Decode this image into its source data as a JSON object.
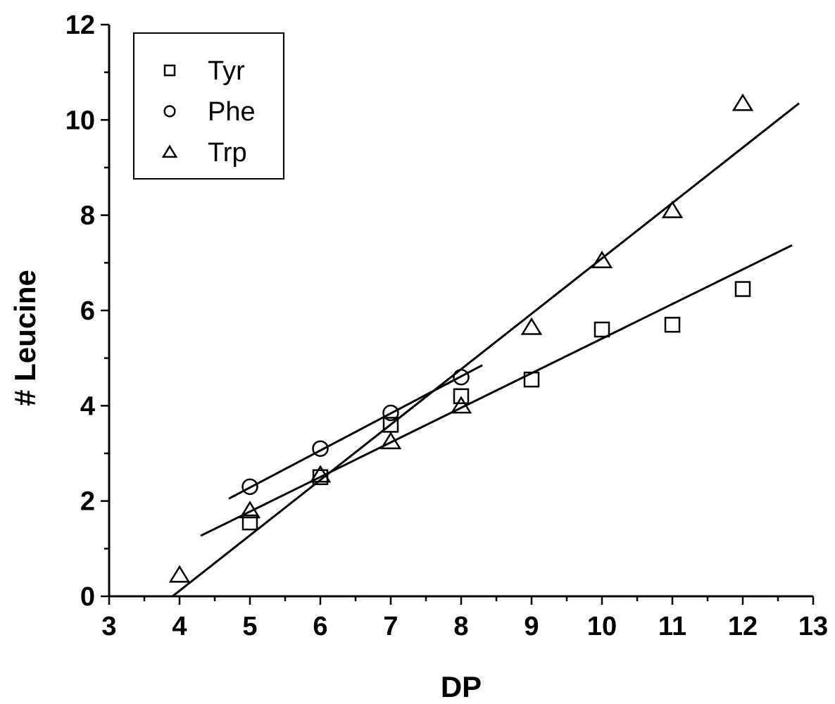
{
  "chart_data": {
    "type": "scatter",
    "title": "",
    "xlabel": "DP",
    "ylabel": "# Leucine",
    "xlim": [
      3,
      13
    ],
    "ylim": [
      0,
      12
    ],
    "x_ticks": [
      "3",
      "4",
      "5",
      "6",
      "7",
      "8",
      "9",
      "10",
      "11",
      "12",
      "13"
    ],
    "y_ticks": [
      "0",
      "2",
      "4",
      "6",
      "8",
      "10",
      "12"
    ],
    "legend_position": "top-left",
    "grid": false,
    "series": [
      {
        "name": "Tyr",
        "marker": "square",
        "points": [
          {
            "x": 5,
            "y": 1.55
          },
          {
            "x": 6,
            "y": 2.5
          },
          {
            "x": 7,
            "y": 3.6
          },
          {
            "x": 8,
            "y": 4.2
          },
          {
            "x": 9,
            "y": 4.55
          },
          {
            "x": 10,
            "y": 5.6
          },
          {
            "x": 11,
            "y": 5.7
          },
          {
            "x": 12,
            "y": 6.45
          }
        ]
      },
      {
        "name": "Phe",
        "marker": "circle",
        "points": [
          {
            "x": 5,
            "y": 2.3
          },
          {
            "x": 6,
            "y": 3.1
          },
          {
            "x": 7,
            "y": 3.85
          },
          {
            "x": 8,
            "y": 4.6
          }
        ]
      },
      {
        "name": "Trp",
        "marker": "triangle",
        "points": [
          {
            "x": 4,
            "y": 0.45
          },
          {
            "x": 5,
            "y": 1.8
          },
          {
            "x": 6,
            "y": 2.55
          },
          {
            "x": 7,
            "y": 3.25
          },
          {
            "x": 8,
            "y": 4.0
          },
          {
            "x": 9,
            "y": 5.65
          },
          {
            "x": 10,
            "y": 7.05
          },
          {
            "x": 11,
            "y": 8.1
          },
          {
            "x": 12,
            "y": 10.35
          }
        ]
      }
    ],
    "fit_lines": [
      {
        "series": "Tyr",
        "x1": 4.3,
        "y1": 1.27,
        "x2": 12.7,
        "y2": 7.37
      },
      {
        "series": "Phe",
        "x1": 4.7,
        "y1": 2.05,
        "x2": 8.3,
        "y2": 4.85
      },
      {
        "series": "Trp",
        "x1": 3.9,
        "y1": 0.0,
        "x2": 12.8,
        "y2": 10.35
      }
    ]
  }
}
